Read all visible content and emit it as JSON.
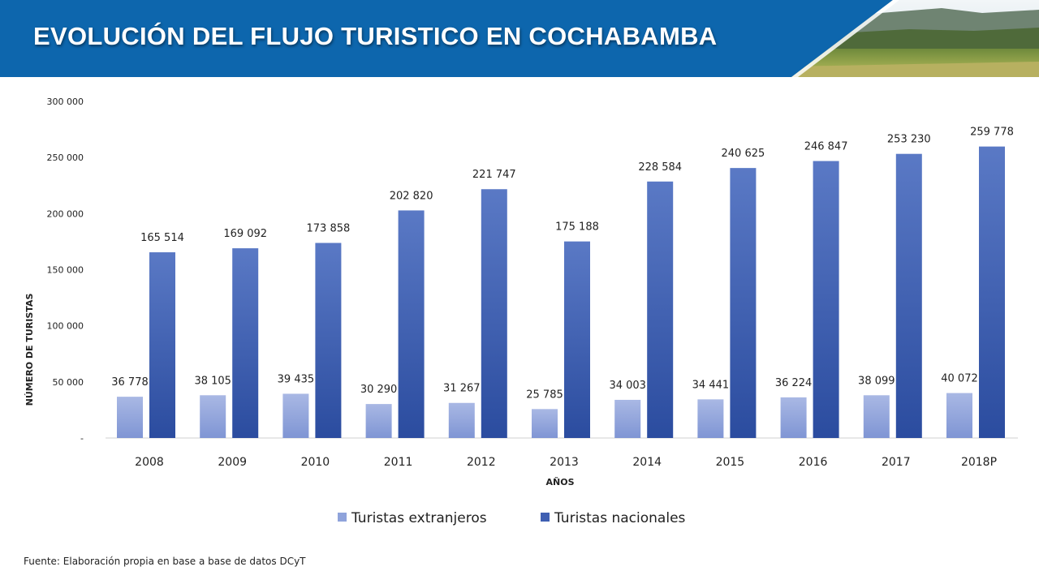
{
  "slide": {
    "title": "EVOLUCIÓN DEL FLUJO TURISTICO EN COCHABAMBA",
    "footnote": "Fuente: Elaboración propia en base a base de datos DCyT"
  },
  "colors": {
    "banner": "#0d66ad",
    "foreign_top": "#a9b8e4",
    "foreign_bottom": "#7f95d4",
    "national_top": "#5a79c5",
    "national_bottom": "#2b4c9f",
    "legend_foreign": "#8fa3db",
    "legend_national": "#3f5fb2"
  },
  "chart_data": {
    "type": "bar",
    "categories": [
      "2008",
      "2009",
      "2010",
      "2011",
      "2012",
      "2013",
      "2014",
      "2015",
      "2016",
      "2017",
      "2018P"
    ],
    "series": [
      {
        "name": "Turistas extranjeros",
        "values": [
          36778,
          38105,
          39435,
          30290,
          31267,
          25785,
          34003,
          34441,
          36224,
          38099,
          40072
        ],
        "labels": [
          "36 778",
          "38 105",
          "39 435",
          "30 290",
          "31 267",
          "25 785",
          "34 003",
          "34 441",
          "36 224",
          "38 099",
          "40 072"
        ]
      },
      {
        "name": "Turistas nacionales",
        "values": [
          165514,
          169092,
          173858,
          202820,
          221747,
          175188,
          228584,
          240625,
          246847,
          253230,
          259778
        ],
        "labels": [
          "165 514",
          "169 092",
          "173 858",
          "202 820",
          "221 747",
          "175 188",
          "228 584",
          "240 625",
          "246 847",
          "253 230",
          "259 778"
        ]
      }
    ],
    "xlabel": "AÑOS",
    "ylabel": "NÚMERO DE TURISTAS",
    "ylim": [
      0,
      300000
    ],
    "yticks": [
      0,
      50000,
      100000,
      150000,
      200000,
      250000,
      300000
    ],
    "ytick_labels": [
      "-",
      "50 000",
      "100 000",
      "150 000",
      "200 000",
      "250 000",
      "300 000"
    ],
    "grid": false,
    "legend": "bottom"
  }
}
